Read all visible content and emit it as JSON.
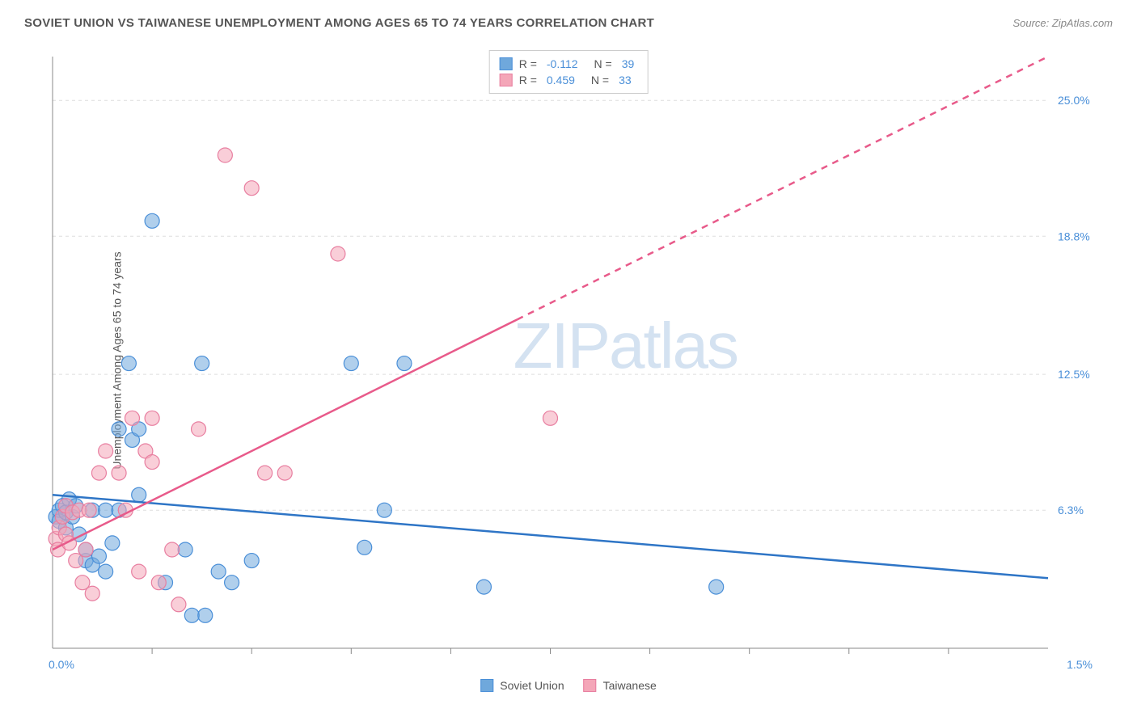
{
  "title": "SOVIET UNION VS TAIWANESE UNEMPLOYMENT AMONG AGES 65 TO 74 YEARS CORRELATION CHART",
  "source": "Source: ZipAtlas.com",
  "y_axis_label": "Unemployment Among Ages 65 to 74 years",
  "watermark_prefix": "ZIP",
  "watermark_suffix": "atlas",
  "chart": {
    "type": "scatter",
    "xlim": [
      0.0,
      1.5
    ],
    "ylim": [
      0.0,
      27.0
    ],
    "y_ticks": [
      6.3,
      12.5,
      18.8,
      25.0
    ],
    "y_tick_labels": [
      "6.3%",
      "12.5%",
      "18.8%",
      "25.0%"
    ],
    "x_ticks": [
      0.15,
      0.3,
      0.45,
      0.6,
      0.75,
      0.9,
      1.05,
      1.2,
      1.35
    ],
    "x_min_label": "0.0%",
    "x_max_label": "1.5%",
    "background_color": "#ffffff",
    "grid_color": "#dddddd",
    "axis_color": "#888888",
    "tick_label_color": "#4a8fd8",
    "marker_radius": 9,
    "marker_opacity": 0.55,
    "line_width": 2.5,
    "series": [
      {
        "name": "Soviet Union",
        "color": "#6fa8dc",
        "stroke": "#4a8fd8",
        "line_color": "#2e75c6",
        "R": "-0.112",
        "N": "39",
        "points": [
          [
            0.005,
            6.0
          ],
          [
            0.01,
            6.3
          ],
          [
            0.01,
            5.8
          ],
          [
            0.015,
            6.5
          ],
          [
            0.02,
            6.2
          ],
          [
            0.02,
            5.5
          ],
          [
            0.025,
            6.8
          ],
          [
            0.03,
            6.0
          ],
          [
            0.035,
            6.5
          ],
          [
            0.04,
            5.2
          ],
          [
            0.05,
            4.0
          ],
          [
            0.05,
            4.5
          ],
          [
            0.06,
            3.8
          ],
          [
            0.06,
            6.3
          ],
          [
            0.07,
            4.2
          ],
          [
            0.08,
            3.5
          ],
          [
            0.08,
            6.3
          ],
          [
            0.09,
            4.8
          ],
          [
            0.1,
            6.3
          ],
          [
            0.1,
            10.0
          ],
          [
            0.115,
            13.0
          ],
          [
            0.12,
            9.5
          ],
          [
            0.13,
            10.0
          ],
          [
            0.13,
            7.0
          ],
          [
            0.15,
            19.5
          ],
          [
            0.17,
            3.0
          ],
          [
            0.2,
            4.5
          ],
          [
            0.21,
            1.5
          ],
          [
            0.225,
            13.0
          ],
          [
            0.23,
            1.5
          ],
          [
            0.25,
            3.5
          ],
          [
            0.27,
            3.0
          ],
          [
            0.3,
            4.0
          ],
          [
            0.45,
            13.0
          ],
          [
            0.47,
            4.6
          ],
          [
            0.5,
            6.3
          ],
          [
            0.53,
            13.0
          ],
          [
            0.65,
            2.8
          ],
          [
            1.0,
            2.8
          ]
        ],
        "trend_line": {
          "x1": 0.0,
          "y1": 7.0,
          "x2": 1.5,
          "y2": 3.2
        }
      },
      {
        "name": "Taiwanese",
        "color": "#f4a6b8",
        "stroke": "#e87ea0",
        "line_color": "#e85a8a",
        "R": "0.459",
        "N": "33",
        "points": [
          [
            0.005,
            5.0
          ],
          [
            0.008,
            4.5
          ],
          [
            0.01,
            5.5
          ],
          [
            0.015,
            6.0
          ],
          [
            0.02,
            5.2
          ],
          [
            0.02,
            6.5
          ],
          [
            0.025,
            4.8
          ],
          [
            0.03,
            6.2
          ],
          [
            0.035,
            4.0
          ],
          [
            0.04,
            6.3
          ],
          [
            0.045,
            3.0
          ],
          [
            0.05,
            4.5
          ],
          [
            0.055,
            6.3
          ],
          [
            0.06,
            2.5
          ],
          [
            0.07,
            8.0
          ],
          [
            0.08,
            9.0
          ],
          [
            0.1,
            8.0
          ],
          [
            0.11,
            6.3
          ],
          [
            0.12,
            10.5
          ],
          [
            0.13,
            3.5
          ],
          [
            0.14,
            9.0
          ],
          [
            0.15,
            10.5
          ],
          [
            0.15,
            8.5
          ],
          [
            0.16,
            3.0
          ],
          [
            0.18,
            4.5
          ],
          [
            0.19,
            2.0
          ],
          [
            0.22,
            10.0
          ],
          [
            0.26,
            22.5
          ],
          [
            0.3,
            21.0
          ],
          [
            0.32,
            8.0
          ],
          [
            0.35,
            8.0
          ],
          [
            0.43,
            18.0
          ],
          [
            0.75,
            10.5
          ]
        ],
        "trend_line": {
          "x1": 0.0,
          "y1": 4.5,
          "x2": 1.5,
          "y2": 27.0
        },
        "dash_after_x": 0.7
      }
    ]
  },
  "legend_labels": {
    "R": "R =",
    "N": "N ="
  }
}
